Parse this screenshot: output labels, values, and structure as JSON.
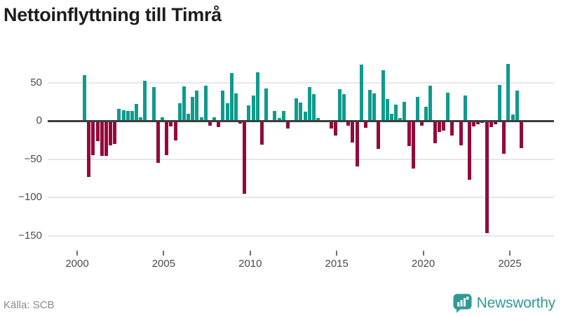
{
  "title": "Nettoinflyttning till Timrå",
  "source": "Källa: SCB",
  "brand": {
    "name": "Newsworthy",
    "color": "#2f9a94"
  },
  "colors": {
    "positive_bar": "#0f9b8e",
    "negative_bar": "#94093c",
    "gridline": "#e7e7e7",
    "zero_axis": "#3d3d3d",
    "axis_text": "#4a4a4a"
  },
  "chart_data": {
    "type": "bar",
    "title": "Nettoinflyttning till Timrå",
    "xlabel": "",
    "ylabel": "",
    "period": "quarterly",
    "ylim": [
      -160,
      80
    ],
    "grid": "horizontal",
    "y_ticks": [
      {
        "value": 50,
        "label": "50"
      },
      {
        "value": 0,
        "label": "0"
      },
      {
        "value": -50,
        "label": "−50"
      },
      {
        "value": -100,
        "label": "−100"
      },
      {
        "value": -150,
        "label": "−150"
      }
    ],
    "x_ticks": [
      2000,
      2005,
      2010,
      2015,
      2020,
      2025
    ],
    "points": [
      [
        "2000Q2",
        60
      ],
      [
        "2000Q3",
        -73
      ],
      [
        "2000Q4",
        -45
      ],
      [
        "2001Q1",
        -27
      ],
      [
        "2001Q2",
        -46
      ],
      [
        "2001Q3",
        -46
      ],
      [
        "2001Q4",
        -32
      ],
      [
        "2002Q1",
        -30
      ],
      [
        "2002Q2",
        16
      ],
      [
        "2002Q3",
        14
      ],
      [
        "2002Q4",
        13
      ],
      [
        "2003Q1",
        13
      ],
      [
        "2003Q2",
        22
      ],
      [
        "2003Q3",
        5
      ],
      [
        "2003Q4",
        52
      ],
      [
        "2004Q1",
        0
      ],
      [
        "2004Q2",
        44
      ],
      [
        "2004Q3",
        -55
      ],
      [
        "2004Q4",
        5
      ],
      [
        "2005Q1",
        -45
      ],
      [
        "2005Q2",
        -7
      ],
      [
        "2005Q3",
        -26
      ],
      [
        "2005Q4",
        23
      ],
      [
        "2006Q1",
        45
      ],
      [
        "2006Q2",
        9
      ],
      [
        "2006Q3",
        31
      ],
      [
        "2006Q4",
        39
      ],
      [
        "2007Q1",
        5
      ],
      [
        "2007Q2",
        46
      ],
      [
        "2007Q3",
        -6
      ],
      [
        "2007Q4",
        5
      ],
      [
        "2008Q1",
        -8
      ],
      [
        "2008Q2",
        39
      ],
      [
        "2008Q3",
        23
      ],
      [
        "2008Q4",
        62
      ],
      [
        "2009Q1",
        36
      ],
      [
        "2009Q2",
        -4
      ],
      [
        "2009Q3",
        -95
      ],
      [
        "2009Q4",
        20
      ],
      [
        "2010Q1",
        33
      ],
      [
        "2010Q2",
        63
      ],
      [
        "2010Q3",
        -31
      ],
      [
        "2010Q4",
        42
      ],
      [
        "2011Q1",
        0
      ],
      [
        "2011Q2",
        13
      ],
      [
        "2011Q3",
        4
      ],
      [
        "2011Q4",
        13
      ],
      [
        "2012Q1",
        -10
      ],
      [
        "2012Q2",
        0
      ],
      [
        "2012Q3",
        29
      ],
      [
        "2012Q4",
        24
      ],
      [
        "2013Q1",
        12
      ],
      [
        "2013Q2",
        44
      ],
      [
        "2013Q3",
        35
      ],
      [
        "2013Q4",
        4
      ],
      [
        "2014Q1",
        0
      ],
      [
        "2014Q2",
        0
      ],
      [
        "2014Q3",
        -10
      ],
      [
        "2014Q4",
        -19
      ],
      [
        "2015Q1",
        41
      ],
      [
        "2015Q2",
        35
      ],
      [
        "2015Q3",
        -6
      ],
      [
        "2015Q4",
        -28
      ],
      [
        "2016Q1",
        -60
      ],
      [
        "2016Q2",
        73
      ],
      [
        "2016Q3",
        -9
      ],
      [
        "2016Q4",
        40
      ],
      [
        "2017Q1",
        36
      ],
      [
        "2017Q2",
        -37
      ],
      [
        "2017Q3",
        66
      ],
      [
        "2017Q4",
        28
      ],
      [
        "2018Q1",
        9
      ],
      [
        "2018Q2",
        21
      ],
      [
        "2018Q3",
        4
      ],
      [
        "2018Q4",
        25
      ],
      [
        "2019Q1",
        -33
      ],
      [
        "2019Q2",
        -62
      ],
      [
        "2019Q3",
        31
      ],
      [
        "2019Q4",
        -6
      ],
      [
        "2020Q1",
        18
      ],
      [
        "2020Q2",
        46
      ],
      [
        "2020Q3",
        -29
      ],
      [
        "2020Q4",
        -15
      ],
      [
        "2021Q1",
        -13
      ],
      [
        "2021Q2",
        37
      ],
      [
        "2021Q3",
        -19
      ],
      [
        "2021Q4",
        0
      ],
      [
        "2022Q1",
        -32
      ],
      [
        "2022Q2",
        33
      ],
      [
        "2022Q3",
        -77
      ],
      [
        "2022Q4",
        -7
      ],
      [
        "2023Q1",
        -5
      ],
      [
        "2023Q2",
        -3
      ],
      [
        "2023Q3",
        -147
      ],
      [
        "2023Q4",
        -8
      ],
      [
        "2024Q1",
        -5
      ],
      [
        "2024Q2",
        47
      ],
      [
        "2024Q3",
        -43
      ],
      [
        "2024Q4",
        74
      ],
      [
        "2025Q1",
        8
      ],
      [
        "2025Q2",
        39
      ],
      [
        "2025Q3",
        -36
      ]
    ]
  }
}
